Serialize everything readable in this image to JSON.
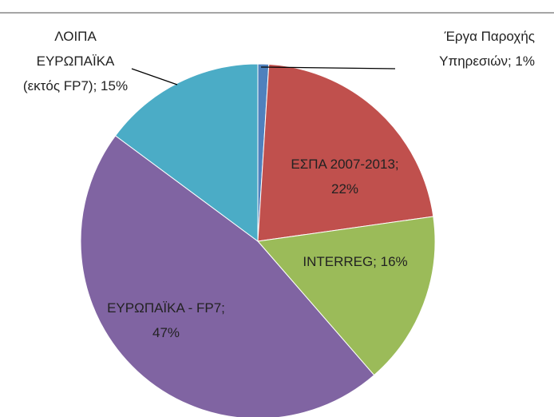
{
  "chart_data": {
    "type": "pie",
    "values": [
      1,
      22,
      16,
      47,
      15
    ],
    "value_labels": [
      "Έργα Παροχής Υπηρεσιών; 1%",
      "ΕΣΠΑ 2007-2013; 22%",
      "INTERREG; 16%",
      "ΕΥΡΩΠΑΪΚΑ - FP7; 47%",
      "ΛΟΙΠΑ ΕΥΡΩΠΑΪΚΑ (εκτός FP7); 15%"
    ],
    "colors": [
      "#4f81bd",
      "#c0504d",
      "#9bbb59",
      "#8064a2",
      "#4bacc6"
    ]
  }
}
